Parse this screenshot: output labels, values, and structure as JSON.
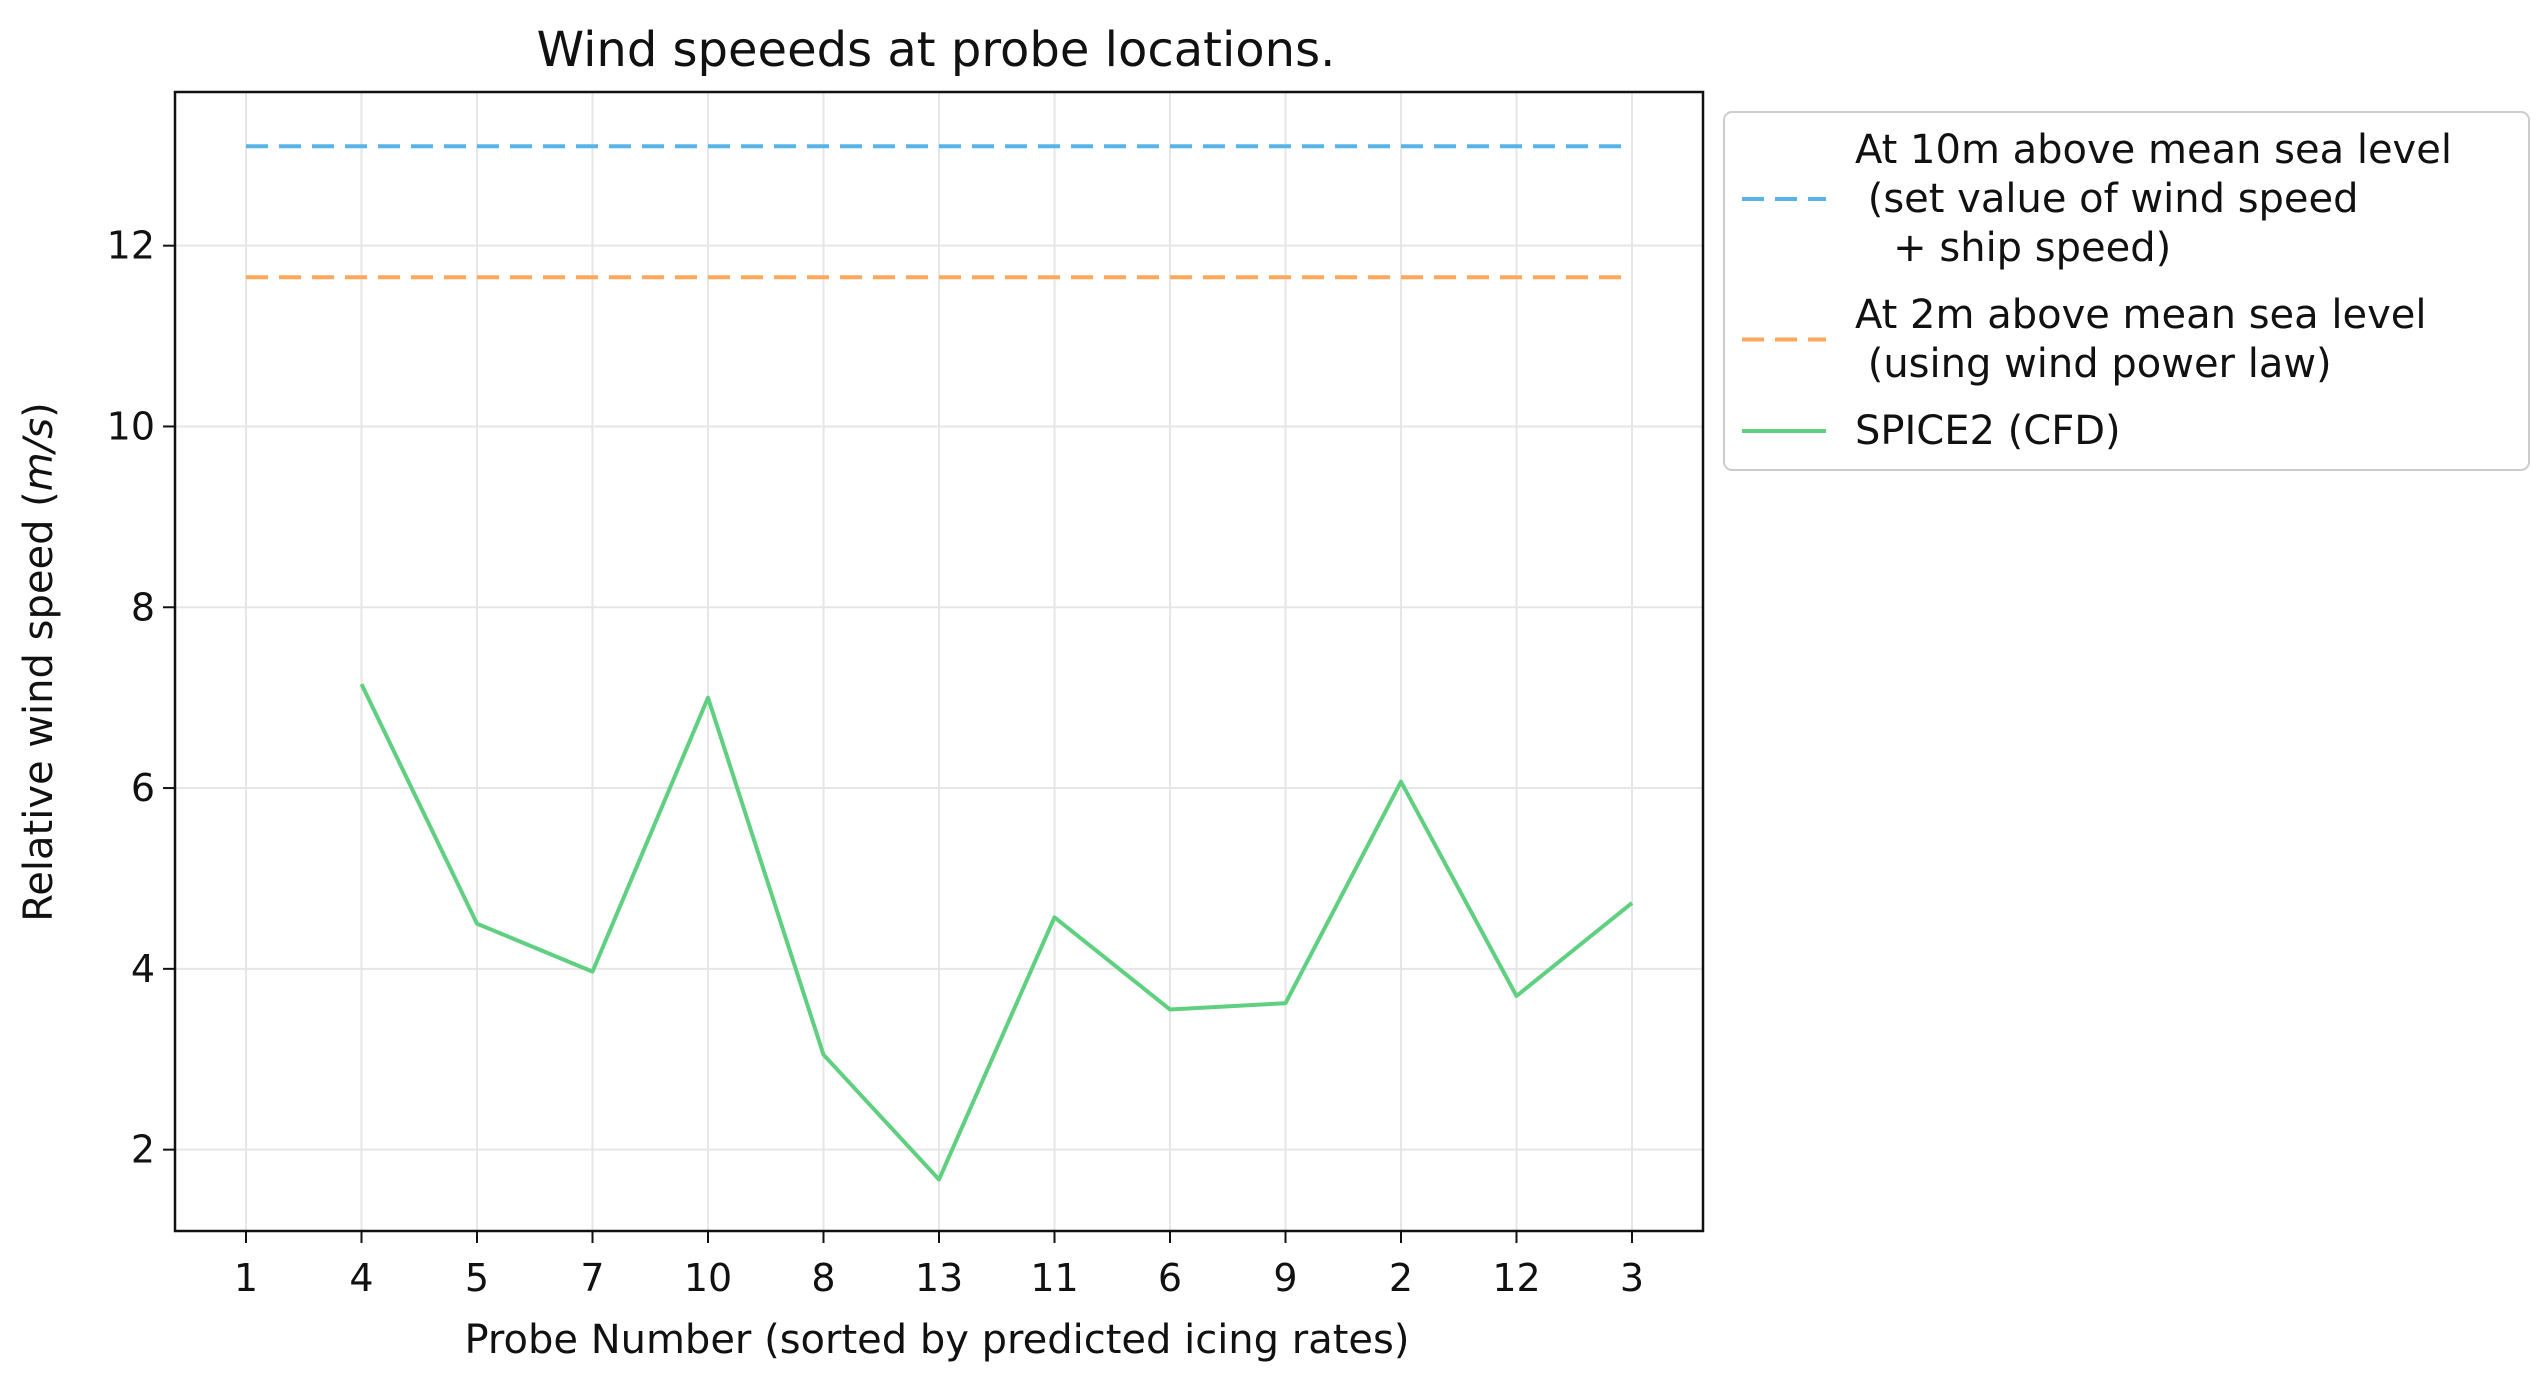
{
  "chart_data": {
    "type": "line",
    "title": "Wind speeeds at probe locations.",
    "xlabel": "Probe Number (sorted by predicted icing rates)",
    "ylabel": "Relative wind speed",
    "ylabel_unit": "m/s",
    "categories": [
      "1",
      "4",
      "5",
      "7",
      "10",
      "8",
      "13",
      "11",
      "6",
      "9",
      "2",
      "12",
      "3"
    ],
    "ylim": [
      1.1,
      13.7
    ],
    "yticks": [
      2,
      4,
      6,
      8,
      10,
      12
    ],
    "grid": true,
    "legend_position": "outside-upper-right",
    "series": [
      {
        "name": "At 10m above mean sea level\n (set value of wind speed\n   + ship speed)",
        "style": "dashed",
        "color": "#56b4e9",
        "values": [
          13.1,
          13.1,
          13.1,
          13.1,
          13.1,
          13.1,
          13.1,
          13.1,
          13.1,
          13.1,
          13.1,
          13.1,
          13.1
        ]
      },
      {
        "name": "At 2m above mean sea level\n (using wind power law)",
        "style": "dashed",
        "color": "#ffa85c",
        "values": [
          11.65,
          11.65,
          11.65,
          11.65,
          11.65,
          11.65,
          11.65,
          11.65,
          11.65,
          11.65,
          11.65,
          11.65,
          11.65
        ]
      },
      {
        "name": "SPICE2 (CFD)",
        "style": "solid",
        "color": "#5fcf80",
        "values": [
          null,
          7.15,
          4.5,
          3.97,
          7.0,
          3.05,
          1.67,
          4.57,
          3.55,
          3.62,
          6.07,
          3.7,
          4.73
        ]
      }
    ]
  }
}
